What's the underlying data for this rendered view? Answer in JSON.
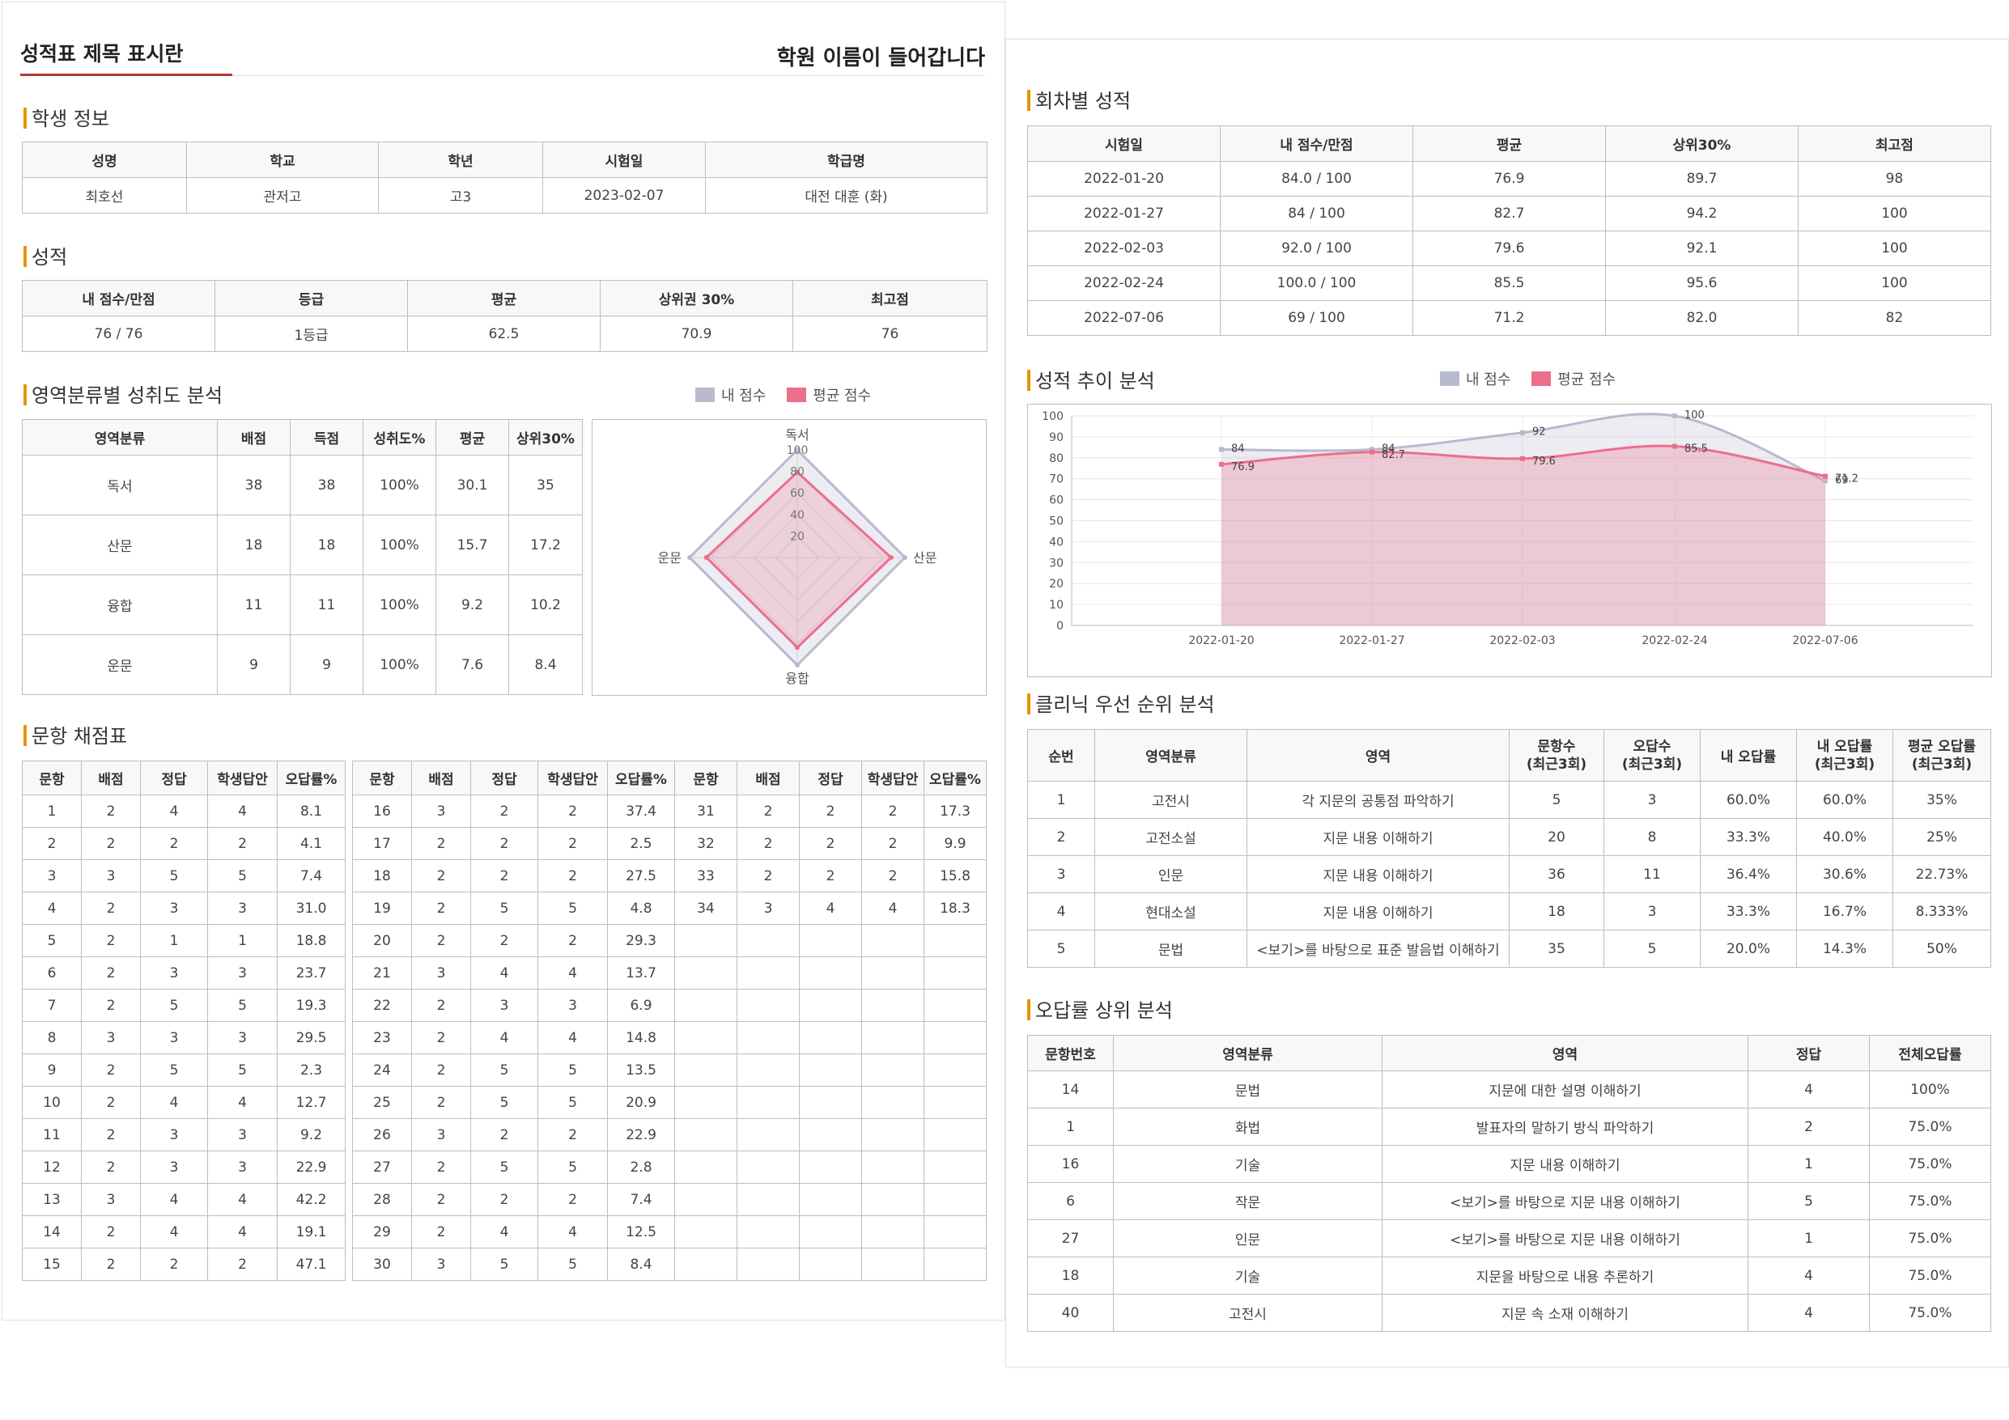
{
  "header": {
    "report_title": "성적표 제목 표시란",
    "academy_name": "학원 이름이 들어갑니다"
  },
  "student_info": {
    "title": "학생 정보",
    "headers": [
      "성명",
      "학교",
      "학년",
      "시험일",
      "학급명"
    ],
    "values": [
      "최호선",
      "관저고",
      "고3",
      "2023-02-07",
      "대전 대훈 (화)"
    ]
  },
  "grades": {
    "title": "성적",
    "headers": [
      "내 점수/만점",
      "등급",
      "평균",
      "상위권 30%",
      "최고점"
    ],
    "values": [
      "76 / 76",
      "1등급",
      "62.5",
      "70.9",
      "76"
    ]
  },
  "area_analysis": {
    "title": "영역분류별 성취도 분석",
    "legend": {
      "mine": "내 점수",
      "avg": "평균 점수"
    },
    "headers": [
      "영역분류",
      "배점",
      "득점",
      "성취도%",
      "평균",
      "상위30%"
    ],
    "rows": [
      [
        "독서",
        "38",
        "38",
        "100%",
        "30.1",
        "35"
      ],
      [
        "산문",
        "18",
        "18",
        "100%",
        "15.7",
        "17.2"
      ],
      [
        "융합",
        "11",
        "11",
        "100%",
        "9.2",
        "10.2"
      ],
      [
        "운문",
        "9",
        "9",
        "100%",
        "7.6",
        "8.4"
      ]
    ]
  },
  "item_grading": {
    "title": "문항 채점표",
    "headers": [
      "문항",
      "배점",
      "정답",
      "학생답안",
      "오답률%"
    ],
    "columns": [
      [
        [
          "1",
          "2",
          "4",
          "4",
          "8.1"
        ],
        [
          "2",
          "2",
          "2",
          "2",
          "4.1"
        ],
        [
          "3",
          "3",
          "5",
          "5",
          "7.4"
        ],
        [
          "4",
          "2",
          "3",
          "3",
          "31.0"
        ],
        [
          "5",
          "2",
          "1",
          "1",
          "18.8"
        ],
        [
          "6",
          "2",
          "3",
          "3",
          "23.7"
        ],
        [
          "7",
          "2",
          "5",
          "5",
          "19.3"
        ],
        [
          "8",
          "3",
          "3",
          "3",
          "29.5"
        ],
        [
          "9",
          "2",
          "5",
          "5",
          "2.3"
        ],
        [
          "10",
          "2",
          "4",
          "4",
          "12.7"
        ],
        [
          "11",
          "2",
          "3",
          "3",
          "9.2"
        ],
        [
          "12",
          "2",
          "3",
          "3",
          "22.9"
        ],
        [
          "13",
          "3",
          "4",
          "4",
          "42.2"
        ],
        [
          "14",
          "2",
          "4",
          "4",
          "19.1"
        ],
        [
          "15",
          "2",
          "2",
          "2",
          "47.1"
        ]
      ],
      [
        [
          "16",
          "3",
          "2",
          "2",
          "37.4"
        ],
        [
          "17",
          "2",
          "2",
          "2",
          "2.5"
        ],
        [
          "18",
          "2",
          "2",
          "2",
          "27.5"
        ],
        [
          "19",
          "2",
          "5",
          "5",
          "4.8"
        ],
        [
          "20",
          "2",
          "2",
          "2",
          "29.3"
        ],
        [
          "21",
          "3",
          "4",
          "4",
          "13.7"
        ],
        [
          "22",
          "2",
          "3",
          "3",
          "6.9"
        ],
        [
          "23",
          "2",
          "4",
          "4",
          "14.8"
        ],
        [
          "24",
          "2",
          "5",
          "5",
          "13.5"
        ],
        [
          "25",
          "2",
          "5",
          "5",
          "20.9"
        ],
        [
          "26",
          "3",
          "2",
          "2",
          "22.9"
        ],
        [
          "27",
          "2",
          "5",
          "5",
          "2.8"
        ],
        [
          "28",
          "2",
          "2",
          "2",
          "7.4"
        ],
        [
          "29",
          "2",
          "4",
          "4",
          "12.5"
        ],
        [
          "30",
          "3",
          "5",
          "5",
          "8.4"
        ]
      ],
      [
        [
          "31",
          "2",
          "2",
          "2",
          "17.3"
        ],
        [
          "32",
          "2",
          "2",
          "2",
          "9.9"
        ],
        [
          "33",
          "2",
          "2",
          "2",
          "15.8"
        ],
        [
          "34",
          "3",
          "4",
          "4",
          "18.3"
        ],
        [
          "",
          "",
          "",
          "",
          ""
        ],
        [
          "",
          "",
          "",
          "",
          ""
        ],
        [
          "",
          "",
          "",
          "",
          ""
        ],
        [
          "",
          "",
          "",
          "",
          ""
        ],
        [
          "",
          "",
          "",
          "",
          ""
        ],
        [
          "",
          "",
          "",
          "",
          ""
        ],
        [
          "",
          "",
          "",
          "",
          ""
        ],
        [
          "",
          "",
          "",
          "",
          ""
        ],
        [
          "",
          "",
          "",
          "",
          ""
        ],
        [
          "",
          "",
          "",
          "",
          ""
        ],
        [
          "",
          "",
          "",
          "",
          ""
        ]
      ]
    ]
  },
  "session_grades": {
    "title": "회차별 성적",
    "headers": [
      "시험일",
      "내 점수/만점",
      "평균",
      "상위30%",
      "최고점"
    ],
    "rows": [
      [
        "2022-01-20",
        "84.0 / 100",
        "76.9",
        "89.7",
        "98"
      ],
      [
        "2022-01-27",
        "84 / 100",
        "82.7",
        "94.2",
        "100"
      ],
      [
        "2022-02-03",
        "92.0 / 100",
        "79.6",
        "92.1",
        "100"
      ],
      [
        "2022-02-24",
        "100.0 / 100",
        "85.5",
        "95.6",
        "100"
      ],
      [
        "2022-07-06",
        "69 / 100",
        "71.2",
        "82.0",
        "82"
      ]
    ]
  },
  "trend": {
    "title": "성적 추이 분석",
    "legend": {
      "mine": "내 점수",
      "avg": "평균 점수"
    }
  },
  "clinic": {
    "title": "클리닉 우선 순위 분석",
    "headers": [
      "순번",
      "영역분류",
      "영역",
      "문항수\n(최근3회)",
      "오답수\n(최근3회)",
      "내 오답률",
      "내 오답률\n(최근3회)",
      "평균 오답률\n(최근3회)"
    ],
    "rows": [
      [
        "1",
        "고전시",
        "각 지문의 공통점 파악하기",
        "5",
        "3",
        "60.0%",
        "60.0%",
        "35%"
      ],
      [
        "2",
        "고전소설",
        "지문 내용 이해하기",
        "20",
        "8",
        "33.3%",
        "40.0%",
        "25%"
      ],
      [
        "3",
        "인문",
        "지문 내용 이해하기",
        "36",
        "11",
        "36.4%",
        "30.6%",
        "22.73%"
      ],
      [
        "4",
        "현대소설",
        "지문 내용 이해하기",
        "18",
        "3",
        "33.3%",
        "16.7%",
        "8.333%"
      ],
      [
        "5",
        "문법",
        "<보기>를 바탕으로 표준 발음법 이해하기",
        "35",
        "5",
        "20.0%",
        "14.3%",
        "50%"
      ]
    ]
  },
  "wrong_rate": {
    "title": "오답률 상위 분석",
    "headers": [
      "문항번호",
      "영역분류",
      "영역",
      "정답",
      "전체오답률"
    ],
    "rows": [
      [
        "14",
        "문법",
        "지문에 대한 설명 이해하기",
        "4",
        "100%"
      ],
      [
        "1",
        "화법",
        "발표자의 말하기 방식 파악하기",
        "2",
        "75.0%"
      ],
      [
        "16",
        "기술",
        "지문 내용 이해하기",
        "1",
        "75.0%"
      ],
      [
        "6",
        "작문",
        "<보기>를 바탕으로 지문 내용 이해하기",
        "5",
        "75.0%"
      ],
      [
        "27",
        "인문",
        "<보기>를 바탕으로 지문 내용 이해하기",
        "1",
        "75.0%"
      ],
      [
        "18",
        "기술",
        "지문을 바탕으로 내용 추론하기",
        "4",
        "75.0%"
      ],
      [
        "40",
        "고전시",
        "지문 속 소재 이해하기",
        "4",
        "75.0%"
      ]
    ]
  },
  "chart_data": [
    {
      "type": "radar",
      "categories": [
        "독서",
        "산문",
        "융합",
        "운문"
      ],
      "series": [
        {
          "name": "내 점수",
          "values": [
            100,
            100,
            100,
            100
          ],
          "color": "#b9b9cf"
        },
        {
          "name": "평균 점수",
          "values": [
            79.2,
            87.2,
            83.6,
            84.4
          ],
          "color": "#ec6e8c"
        }
      ],
      "rticks": [
        "20",
        "40",
        "60",
        "80",
        "100"
      ],
      "rmax": 100,
      "legend": "top"
    },
    {
      "type": "area",
      "categories": [
        "2022-01-20",
        "2022-01-27",
        "2022-02-03",
        "2022-02-24",
        "2022-07-06"
      ],
      "series": [
        {
          "name": "내 점수",
          "values": [
            84,
            84,
            92,
            100,
            69
          ],
          "labels": [
            "84",
            "84",
            "92",
            "100",
            "69"
          ],
          "color": "#b9b9cf"
        },
        {
          "name": "평균 점수",
          "values": [
            76.9,
            82.7,
            79.6,
            85.5,
            71.2
          ],
          "labels": [
            "76.9",
            "82.7",
            "79.6",
            "85.5",
            "71.2"
          ],
          "color": "#ec6e8c"
        }
      ],
      "yticks": [
        "0",
        "10",
        "20",
        "30",
        "40",
        "50",
        "60",
        "70",
        "80",
        "90",
        "100"
      ],
      "ylim": [
        0,
        100
      ],
      "legend": "top",
      "grid": true
    }
  ]
}
